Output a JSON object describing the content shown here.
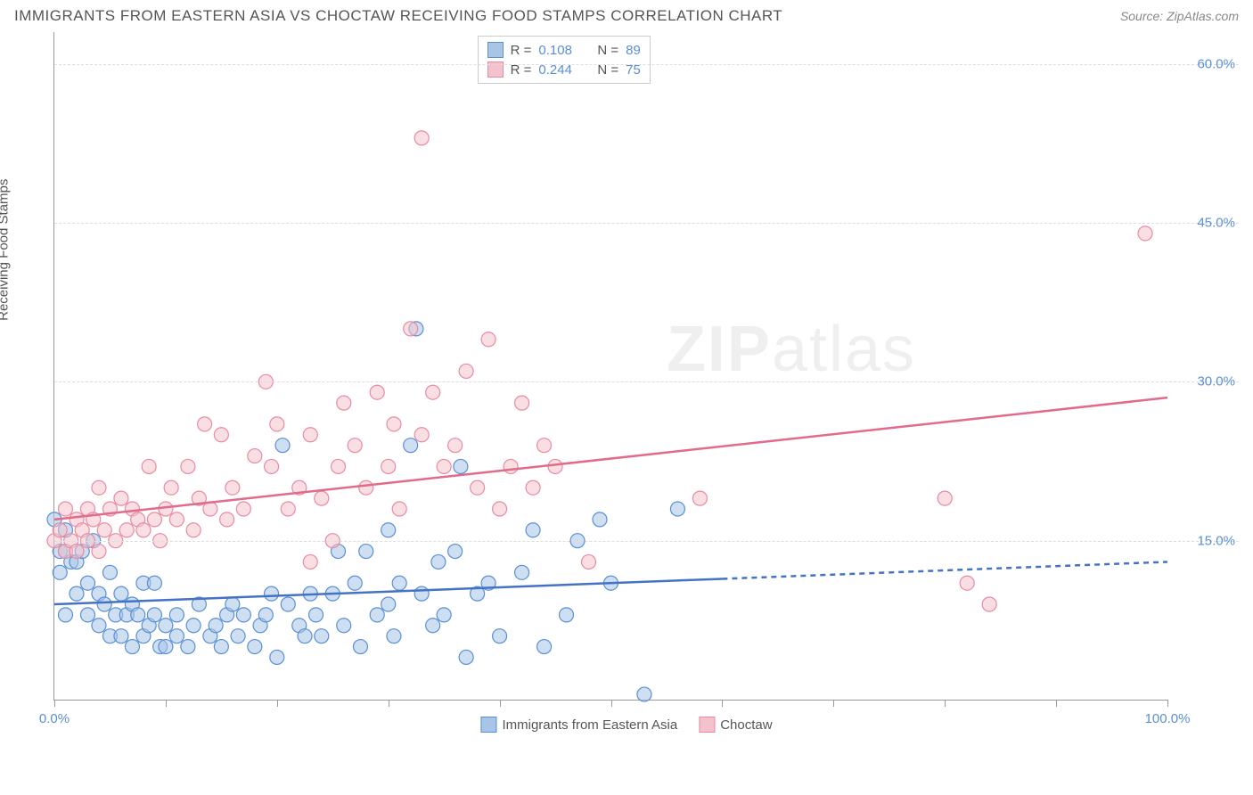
{
  "title": "IMMIGRANTS FROM EASTERN ASIA VS CHOCTAW RECEIVING FOOD STAMPS CORRELATION CHART",
  "source_label": "Source:",
  "source_name": "ZipAtlas.com",
  "y_axis_label": "Receiving Food Stamps",
  "watermark_zip": "ZIP",
  "watermark_atlas": "atlas",
  "chart": {
    "type": "scatter",
    "background_color": "#ffffff",
    "grid_color": "#dddddd",
    "axis_color": "#999999",
    "tick_label_color": "#5a8fd6",
    "xlim": [
      0,
      100
    ],
    "ylim": [
      0,
      63
    ],
    "y_ticks": [
      {
        "value": 15,
        "label": "15.0%"
      },
      {
        "value": 30,
        "label": "30.0%"
      },
      {
        "value": 45,
        "label": "45.0%"
      },
      {
        "value": 60,
        "label": "60.0%"
      }
    ],
    "x_ticks": [
      0,
      10,
      20,
      30,
      40,
      50,
      60,
      70,
      80,
      90,
      100
    ],
    "x_tick_labels": {
      "0": "0.0%",
      "100": "100.0%"
    },
    "marker_radius": 8,
    "marker_opacity": 0.55,
    "marker_stroke_width": 1.2,
    "line_width": 2.5,
    "series": [
      {
        "name": "Immigrants from Eastern Asia",
        "fill_color": "#a8c5e8",
        "stroke_color": "#5a8fd6",
        "line_color": "#4472c4",
        "r": "0.108",
        "n": "89",
        "trend": {
          "x1": 0,
          "y1": 9,
          "x2": 100,
          "y2": 13,
          "solid_until_x": 60
        },
        "points": [
          [
            0,
            17
          ],
          [
            0.5,
            14
          ],
          [
            0.5,
            12
          ],
          [
            1,
            16
          ],
          [
            1,
            14
          ],
          [
            1,
            8
          ],
          [
            1.5,
            13
          ],
          [
            2,
            13
          ],
          [
            2,
            10
          ],
          [
            2.5,
            14
          ],
          [
            3,
            11
          ],
          [
            3,
            8
          ],
          [
            3.5,
            15
          ],
          [
            4,
            10
          ],
          [
            4,
            7
          ],
          [
            4.5,
            9
          ],
          [
            5,
            12
          ],
          [
            5,
            6
          ],
          [
            5.5,
            8
          ],
          [
            6,
            10
          ],
          [
            6,
            6
          ],
          [
            6.5,
            8
          ],
          [
            7,
            9
          ],
          [
            7,
            5
          ],
          [
            7.5,
            8
          ],
          [
            8,
            11
          ],
          [
            8,
            6
          ],
          [
            8.5,
            7
          ],
          [
            9,
            8
          ],
          [
            9,
            11
          ],
          [
            9.5,
            5
          ],
          [
            10,
            7
          ],
          [
            10,
            5
          ],
          [
            11,
            8
          ],
          [
            11,
            6
          ],
          [
            12,
            5
          ],
          [
            12.5,
            7
          ],
          [
            13,
            9
          ],
          [
            14,
            6
          ],
          [
            14.5,
            7
          ],
          [
            15,
            5
          ],
          [
            15.5,
            8
          ],
          [
            16,
            9
          ],
          [
            16.5,
            6
          ],
          [
            17,
            8
          ],
          [
            18,
            5
          ],
          [
            18.5,
            7
          ],
          [
            19,
            8
          ],
          [
            19.5,
            10
          ],
          [
            20,
            4
          ],
          [
            20.5,
            24
          ],
          [
            21,
            9
          ],
          [
            22,
            7
          ],
          [
            22.5,
            6
          ],
          [
            23,
            10
          ],
          [
            23.5,
            8
          ],
          [
            24,
            6
          ],
          [
            25,
            10
          ],
          [
            25.5,
            14
          ],
          [
            26,
            7
          ],
          [
            27,
            11
          ],
          [
            27.5,
            5
          ],
          [
            28,
            14
          ],
          [
            29,
            8
          ],
          [
            30,
            16
          ],
          [
            30,
            9
          ],
          [
            30.5,
            6
          ],
          [
            31,
            11
          ],
          [
            32,
            24
          ],
          [
            32.5,
            35
          ],
          [
            33,
            10
          ],
          [
            34,
            7
          ],
          [
            34.5,
            13
          ],
          [
            35,
            8
          ],
          [
            36,
            14
          ],
          [
            36.5,
            22
          ],
          [
            37,
            4
          ],
          [
            38,
            10
          ],
          [
            39,
            11
          ],
          [
            40,
            6
          ],
          [
            42,
            12
          ],
          [
            43,
            16
          ],
          [
            44,
            5
          ],
          [
            46,
            8
          ],
          [
            47,
            15
          ],
          [
            49,
            17
          ],
          [
            50,
            11
          ],
          [
            53,
            0.5
          ],
          [
            56,
            18
          ]
        ]
      },
      {
        "name": "Choctaw",
        "fill_color": "#f4c2cd",
        "stroke_color": "#e88ba0",
        "line_color": "#e06b8a",
        "r": "0.244",
        "n": "75",
        "trend": {
          "x1": 0,
          "y1": 17,
          "x2": 100,
          "y2": 28.5,
          "solid_until_x": 100
        },
        "points": [
          [
            0,
            15
          ],
          [
            0.5,
            16
          ],
          [
            1,
            14
          ],
          [
            1,
            18
          ],
          [
            1.5,
            15
          ],
          [
            2,
            17
          ],
          [
            2,
            14
          ],
          [
            2.5,
            16
          ],
          [
            3,
            15
          ],
          [
            3,
            18
          ],
          [
            3.5,
            17
          ],
          [
            4,
            14
          ],
          [
            4,
            20
          ],
          [
            4.5,
            16
          ],
          [
            5,
            18
          ],
          [
            5.5,
            15
          ],
          [
            6,
            19
          ],
          [
            6.5,
            16
          ],
          [
            7,
            18
          ],
          [
            7.5,
            17
          ],
          [
            8,
            16
          ],
          [
            8.5,
            22
          ],
          [
            9,
            17
          ],
          [
            9.5,
            15
          ],
          [
            10,
            18
          ],
          [
            10.5,
            20
          ],
          [
            11,
            17
          ],
          [
            12,
            22
          ],
          [
            12.5,
            16
          ],
          [
            13,
            19
          ],
          [
            13.5,
            26
          ],
          [
            14,
            18
          ],
          [
            15,
            25
          ],
          [
            15.5,
            17
          ],
          [
            16,
            20
          ],
          [
            17,
            18
          ],
          [
            18,
            23
          ],
          [
            19,
            30
          ],
          [
            19.5,
            22
          ],
          [
            20,
            26
          ],
          [
            21,
            18
          ],
          [
            22,
            20
          ],
          [
            23,
            25
          ],
          [
            23,
            13
          ],
          [
            24,
            19
          ],
          [
            25,
            15
          ],
          [
            25.5,
            22
          ],
          [
            26,
            28
          ],
          [
            27,
            24
          ],
          [
            28,
            20
          ],
          [
            29,
            29
          ],
          [
            30,
            22
          ],
          [
            30.5,
            26
          ],
          [
            31,
            18
          ],
          [
            32,
            35
          ],
          [
            33,
            25
          ],
          [
            33,
            53
          ],
          [
            34,
            29
          ],
          [
            35,
            22
          ],
          [
            36,
            24
          ],
          [
            37,
            31
          ],
          [
            38,
            20
          ],
          [
            39,
            34
          ],
          [
            40,
            18
          ],
          [
            41,
            22
          ],
          [
            42,
            28
          ],
          [
            43,
            20
          ],
          [
            44,
            24
          ],
          [
            45,
            22
          ],
          [
            48,
            13
          ],
          [
            58,
            19
          ],
          [
            80,
            19
          ],
          [
            82,
            11
          ],
          [
            84,
            9
          ],
          [
            98,
            44
          ]
        ]
      }
    ]
  },
  "legend_bottom": [
    {
      "label": "Immigrants from Eastern Asia",
      "fill": "#a8c5e8",
      "stroke": "#5a8fd6"
    },
    {
      "label": "Choctaw",
      "fill": "#f4c2cd",
      "stroke": "#e88ba0"
    }
  ]
}
